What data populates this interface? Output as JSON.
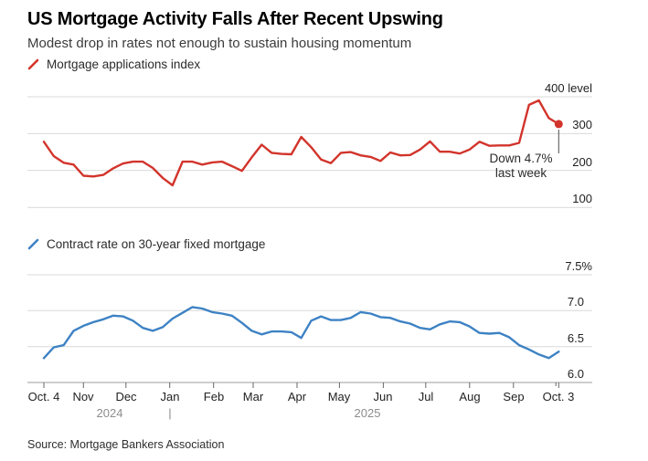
{
  "header": {
    "title": "US Mortgage Activity Falls After Recent Upswing",
    "subtitle": "Modest drop in rates not enough to sustain housing momentum"
  },
  "colors": {
    "red": "#d2342b",
    "blue": "#3d82c4",
    "gridline": "#d9d9d9",
    "axis_line": "#9e9e9e",
    "tick": "#666666",
    "annotation_line": "#4d4d4d"
  },
  "annotation": {
    "line1": "Down 4.7%",
    "line2": "last week"
  },
  "x_axis": {
    "tick_labels": [
      "Oct. 4",
      "Nov",
      "Dec",
      "Jan",
      "Feb",
      "Mar",
      "Apr",
      "May",
      "Jun",
      "Jul",
      "Aug",
      "Sep",
      "Oct. 3"
    ],
    "year_labels": [
      "2024",
      "2025"
    ],
    "year_divider": "|"
  },
  "source": "Source: Mortgage Bankers Association",
  "chart_data": [
    {
      "type": "line",
      "title": "Mortgage applications index",
      "color": "#d2342b",
      "x_range_label": "Oct. 4, 2024 to Oct. 3, 2025, weekly",
      "ylim": [
        85,
        410
      ],
      "y_ticks": [
        {
          "value": 400,
          "label": "400 level"
        },
        {
          "value": 300,
          "label": "300"
        },
        {
          "value": 200,
          "label": "200"
        },
        {
          "value": 100,
          "label": "100"
        }
      ],
      "values": [
        278,
        239,
        221,
        216,
        186,
        184,
        188,
        206,
        219,
        224,
        224,
        207,
        180,
        160,
        224,
        224,
        216,
        222,
        224,
        212,
        199,
        236,
        270,
        248,
        245,
        244,
        291,
        263,
        230,
        220,
        248,
        250,
        241,
        237,
        226,
        249,
        241,
        242,
        257,
        279,
        251,
        251,
        246,
        257,
        278,
        267,
        268,
        268,
        275,
        378,
        390,
        342,
        326
      ],
      "last_point": {
        "value": 326,
        "marker": "dot",
        "annotation": "Down 4.7% last week"
      }
    },
    {
      "type": "line",
      "title": "Contract rate on 30-year fixed mortgage",
      "color": "#3d82c4",
      "x_range_label": "Oct. 4, 2024 to Oct. 3, 2025, weekly",
      "ylim": [
        6.0,
        7.5
      ],
      "y_ticks": [
        {
          "value": 7.5,
          "label": "7.5%"
        },
        {
          "value": 7.0,
          "label": "7.0"
        },
        {
          "value": 6.5,
          "label": "6.5"
        },
        {
          "value": 6.0,
          "label": "6.0"
        }
      ],
      "values": [
        6.34,
        6.49,
        6.52,
        6.72,
        6.79,
        6.84,
        6.88,
        6.93,
        6.92,
        6.86,
        6.76,
        6.72,
        6.77,
        6.89,
        6.97,
        7.05,
        7.03,
        6.98,
        6.96,
        6.93,
        6.83,
        6.72,
        6.67,
        6.71,
        6.71,
        6.7,
        6.62,
        6.86,
        6.92,
        6.87,
        6.87,
        6.9,
        6.98,
        6.96,
        6.91,
        6.9,
        6.85,
        6.82,
        6.76,
        6.74,
        6.81,
        6.85,
        6.84,
        6.78,
        6.69,
        6.68,
        6.69,
        6.63,
        6.52,
        6.46,
        6.39,
        6.34,
        6.43
      ],
      "last_point": {
        "value": 6.43,
        "marker": "none",
        "annotation": ""
      }
    }
  ]
}
